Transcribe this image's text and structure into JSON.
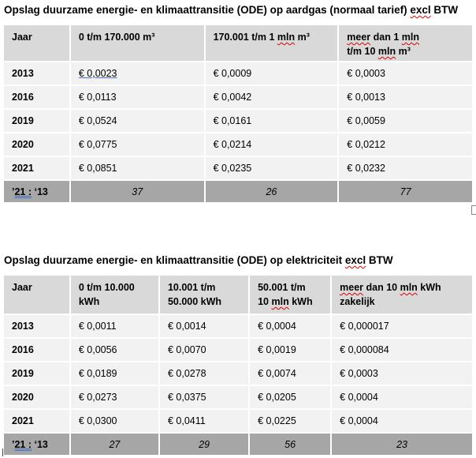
{
  "gas": {
    "title_start": "Opslag duurzame energie- en klimaattransitie (ODE) op aardgas (normaal tarief) ",
    "title_sq": "excl",
    "title_end": " BTW",
    "headers": [
      "Jaar",
      "0 t/m 170.000 m³",
      "170.001 t/m 1 ",
      "mln",
      " m³",
      "meer",
      " dan 1 ",
      "mln",
      "t/m 10 ",
      "mln",
      " m³"
    ],
    "rows": [
      {
        "year": "2013",
        "c1": "€  0,0023",
        "c2": "€ 0,0009",
        "c3": "€ 0,0003"
      },
      {
        "year": "2016",
        "c1": "€ 0,0113",
        "c2": "€ 0,0042",
        "c3": "€ 0,0013"
      },
      {
        "year": "2019",
        "c1": "€ 0,0524",
        "c2": "€ 0,0161",
        "c3": "€ 0,0059"
      },
      {
        "year": "2020",
        "c1": "€ 0,0775",
        "c2": "€ 0,0214",
        "c3": "€ 0,0212"
      },
      {
        "year": "2021",
        "c1": "€ 0,0851",
        "c2": "€ 0,0235",
        "c3": "€ 0,0232"
      }
    ],
    "ratio": {
      "a": "’",
      "b": "21 :",
      "c": " ‘13",
      "c1": "37",
      "c2": "26",
      "c3": "77"
    }
  },
  "elec": {
    "title_start": "Opslag duurzame energie- en klimaattransitie (ODE) op elektriciteit ",
    "title_sq": "excl",
    "title_end": " BTW",
    "h1": "Jaar",
    "h2a": "0 t/m 10.000",
    "h2b": "kWh",
    "h3a": "10.001 t/m",
    "h3b": "50.000 kWh",
    "h4a": "50.001 t/m",
    "h4b1": "10 ",
    "h4b2": "mln",
    "h4b3": " kWh",
    "h5a1": "meer",
    "h5a2": " dan 10 ",
    "h5a3": "mln",
    "h5a4": " kWh",
    "h5b": "zakelijk",
    "rows": [
      {
        "year": "2013",
        "c1": "€ 0,0011",
        "c2": "€ 0,0014",
        "c3": "€ 0,0004",
        "c4": "€ 0,000017"
      },
      {
        "year": "2016",
        "c1": "€ 0,0056",
        "c2": "€ 0,0070",
        "c3": "€ 0,0019",
        "c4": "€ 0,000084"
      },
      {
        "year": "2019",
        "c1": "€ 0,0189",
        "c2": "€ 0,0278",
        "c3": "€ 0,0074",
        "c4": "€ 0,0003"
      },
      {
        "year": "2020",
        "c1": "€ 0,0273",
        "c2": "€ 0,0375",
        "c3": "€ 0,0205",
        "c4": "€ 0,0004"
      },
      {
        "year": "2021",
        "c1": "€ 0,0300",
        "c2": "€ 0,0411",
        "c3": "€ 0,0225",
        "c4": "€ 0,0004"
      }
    ],
    "ratio": {
      "a": "’",
      "b": "21 :",
      "c": " ‘13",
      "c1": "27",
      "c2": "29",
      "c3": "56",
      "c4": "23"
    }
  }
}
